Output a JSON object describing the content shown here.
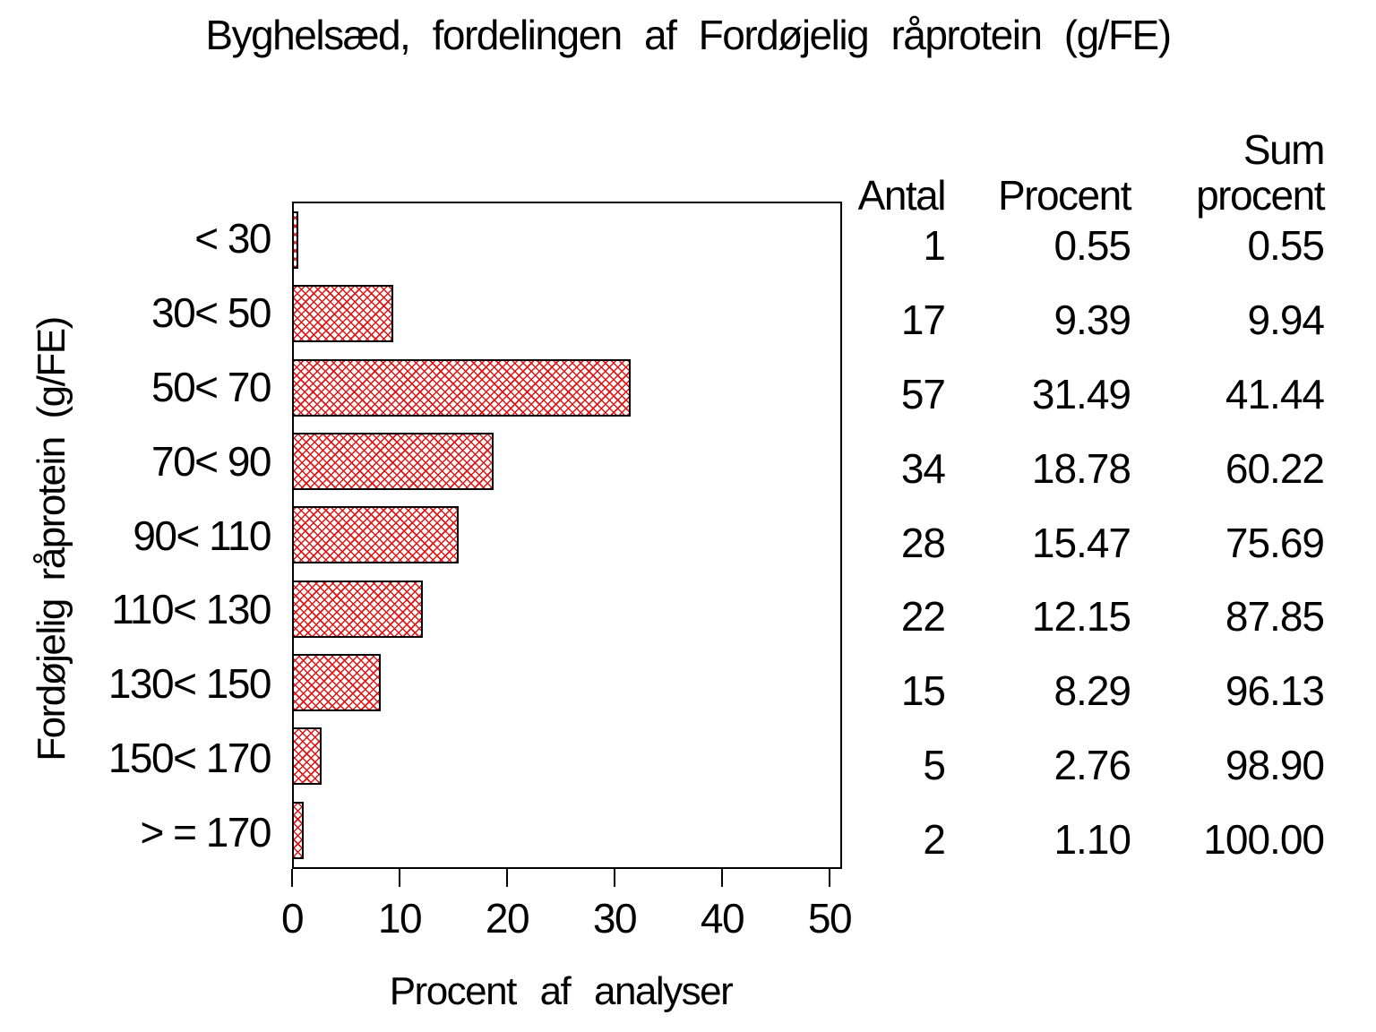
{
  "title": "Byghelsæd, fordelingen af Fordøjelig råprotein (g/FE)",
  "colors": {
    "hatch_red": "#e31414",
    "ink": "#000000",
    "background": "#ffffff"
  },
  "axes": {
    "x_title": "Procent af analyser",
    "y_title": "Fordøjelig råprotein (g/FE)",
    "x_tick_labels": [
      "0",
      "10",
      "20",
      "30",
      "40",
      "50"
    ]
  },
  "side_table": {
    "headers": {
      "antal": "Antal",
      "procent": "Procent",
      "sum_line1": "Sum",
      "sum_line2": "procent"
    },
    "rows": [
      {
        "antal": "1",
        "procent": "0.55",
        "sum": "0.55"
      },
      {
        "antal": "17",
        "procent": "9.39",
        "sum": "9.94"
      },
      {
        "antal": "57",
        "procent": "31.49",
        "sum": "41.44"
      },
      {
        "antal": "34",
        "procent": "18.78",
        "sum": "60.22"
      },
      {
        "antal": "28",
        "procent": "15.47",
        "sum": "75.69"
      },
      {
        "antal": "22",
        "procent": "12.15",
        "sum": "87.85"
      },
      {
        "antal": "15",
        "procent": "8.29",
        "sum": "96.13"
      },
      {
        "antal": "5",
        "procent": "2.76",
        "sum": "98.90"
      },
      {
        "antal": "2",
        "procent": "1.10",
        "sum": "100.00"
      }
    ]
  },
  "chart_data": {
    "type": "bar",
    "orientation": "horizontal",
    "title": "Byghelsæd, fordelingen af Fordøjelig råprotein (g/FE)",
    "xlabel": "Procent af analyser",
    "ylabel": "Fordøjelig råprotein (g/FE)",
    "xlim": [
      0,
      51.2
    ],
    "x_ticks": [
      0,
      10,
      20,
      30,
      40,
      50
    ],
    "grid": false,
    "legend": "none",
    "bar_style": "red diagonal crosshatch fill, black outline, white background",
    "categories": [
      "< 30",
      "30< 50",
      "50< 70",
      "70< 90",
      "90< 110",
      "110< 130",
      "130< 150",
      "150< 170",
      "> = 170"
    ],
    "bars_show_series": "Procent",
    "series": [
      {
        "name": "Antal",
        "values": [
          1,
          17,
          57,
          34,
          28,
          22,
          15,
          5,
          2
        ]
      },
      {
        "name": "Procent",
        "values": [
          0.55,
          9.39,
          31.49,
          18.78,
          15.47,
          12.15,
          8.29,
          2.76,
          1.1
        ]
      },
      {
        "name": "Sum procent",
        "values": [
          0.55,
          9.94,
          41.44,
          60.22,
          75.69,
          87.85,
          96.13,
          98.9,
          100.0
        ]
      }
    ]
  }
}
